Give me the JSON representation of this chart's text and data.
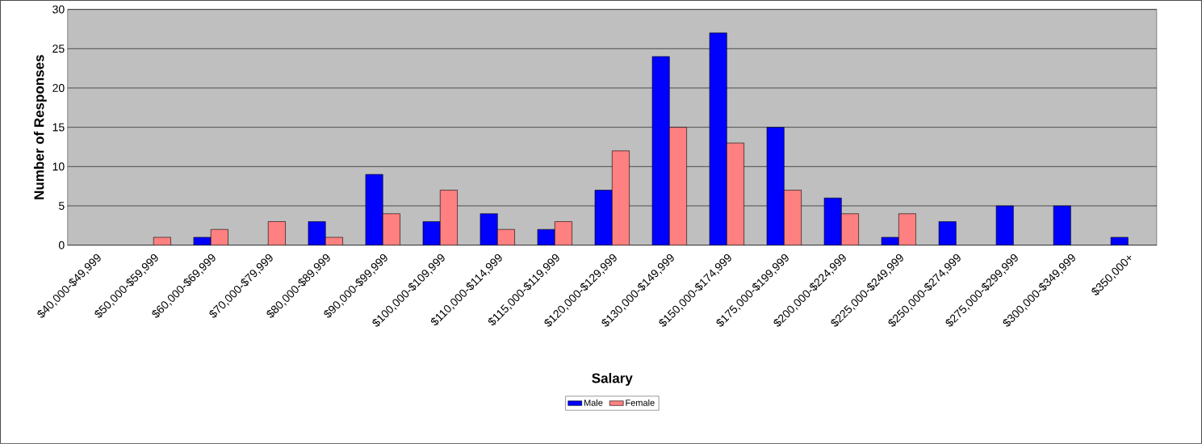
{
  "chart_data": {
    "type": "bar",
    "xlabel": "Salary",
    "ylabel": "Number of Responses",
    "categories": [
      "$40,000-$49,999",
      "$50,000-$59,999",
      "$60,000-$69,999",
      "$70,000-$79,999",
      "$80,000-$89,999",
      "$90,000-$99,999",
      "$100,000-$109,999",
      "$110,000-$114,999",
      "$115,000-$119,999",
      "$120,000-$129,999",
      "$130,000-$149,999",
      "$150,000-$174,999",
      "$175,000-$199,999",
      "$200,000-$224,999",
      "$225,000-$249,999",
      "$250,000-$274,999",
      "$275,000-$299,999",
      "$300,000-$349,999",
      "$350,000+"
    ],
    "series": [
      {
        "name": "Male",
        "color": "#0000ff",
        "values": [
          0,
          0,
          1,
          0,
          3,
          9,
          3,
          4,
          2,
          7,
          24,
          27,
          15,
          6,
          1,
          3,
          5,
          5,
          1
        ]
      },
      {
        "name": "Female",
        "color": "#ff8080",
        "values": [
          0,
          1,
          2,
          3,
          1,
          4,
          7,
          2,
          3,
          12,
          15,
          13,
          7,
          4,
          4,
          0,
          0,
          0,
          0
        ]
      }
    ],
    "ylim": [
      0,
      30
    ],
    "yticks": [
      0,
      5,
      10,
      15,
      20,
      25,
      30
    ],
    "grid": "y",
    "legend": "bottom"
  }
}
